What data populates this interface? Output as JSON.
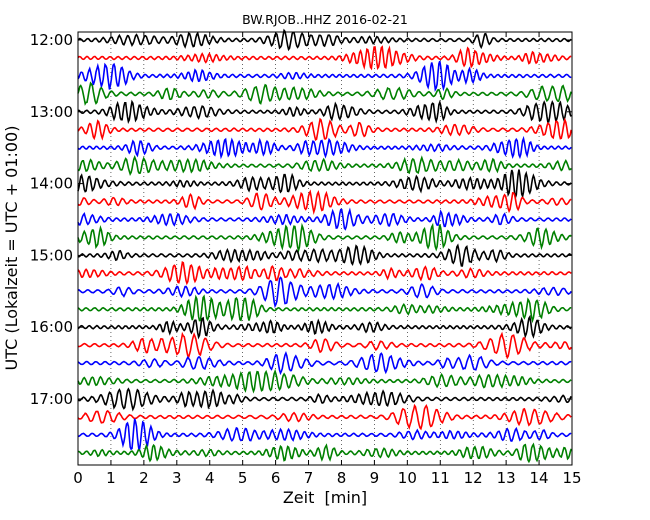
{
  "chart_data": {
    "type": "line",
    "title": "BW.RJOB..HHZ 2016-02-21",
    "xlabel": "Zeit  [min]",
    "ylabel": "UTC (Lokalzeit = UTC + 01:00)",
    "xlim": [
      0,
      15
    ],
    "x_ticks": [
      "0",
      "1",
      "2",
      "3",
      "4",
      "5",
      "6",
      "7",
      "8",
      "9",
      "10",
      "11",
      "12",
      "13",
      "14",
      "15"
    ],
    "y_tick_labels": [
      "12:00",
      "13:00",
      "14:00",
      "15:00",
      "16:00",
      "17:00"
    ],
    "grid": "vertical dotted at each minute",
    "trace_interval_minutes": 15,
    "trace_count": 24,
    "trace_colors": [
      "#000000",
      "#ff0000",
      "#0000ff",
      "#008000"
    ],
    "series": [
      {
        "start": "12:00",
        "color": "#000000"
      },
      {
        "start": "12:15",
        "color": "#ff0000"
      },
      {
        "start": "12:30",
        "color": "#0000ff"
      },
      {
        "start": "12:45",
        "color": "#008000"
      },
      {
        "start": "13:00",
        "color": "#000000"
      },
      {
        "start": "13:15",
        "color": "#ff0000"
      },
      {
        "start": "13:30",
        "color": "#0000ff"
      },
      {
        "start": "13:45",
        "color": "#008000"
      },
      {
        "start": "14:00",
        "color": "#000000"
      },
      {
        "start": "14:15",
        "color": "#ff0000"
      },
      {
        "start": "14:30",
        "color": "#0000ff"
      },
      {
        "start": "14:45",
        "color": "#008000"
      },
      {
        "start": "15:00",
        "color": "#000000"
      },
      {
        "start": "15:15",
        "color": "#ff0000"
      },
      {
        "start": "15:30",
        "color": "#0000ff"
      },
      {
        "start": "15:45",
        "color": "#008000"
      },
      {
        "start": "16:00",
        "color": "#000000"
      },
      {
        "start": "16:15",
        "color": "#ff0000"
      },
      {
        "start": "16:30",
        "color": "#0000ff"
      },
      {
        "start": "16:45",
        "color": "#008000"
      },
      {
        "start": "17:00",
        "color": "#000000"
      },
      {
        "start": "17:15",
        "color": "#ff0000"
      },
      {
        "start": "17:30",
        "color": "#0000ff"
      },
      {
        "start": "17:45",
        "color": "#008000"
      }
    ]
  }
}
